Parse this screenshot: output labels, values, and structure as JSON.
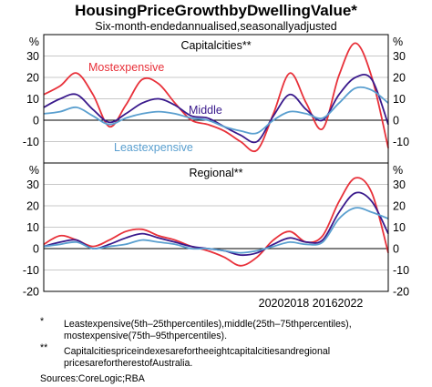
{
  "title": "HousingPriceGrowthbyDwellingValue*",
  "subtitle": "Six-month-endedannualised,seasonallyadjusted",
  "x_tick_text": "20202018 20162022",
  "notes": [
    {
      "marker": "*",
      "lines": [
        "Leastexpensive(5th–25thpercentiles),middle(25th–75thpercentiles),",
        "mostexpensive(75th–95thpercentiles)."
      ]
    },
    {
      "marker": "**",
      "lines": [
        "Capitalcitiespriceindexesarefortheeightcapitalcitiesandregional",
        "pricesarefortherestofAustralia."
      ]
    }
  ],
  "source": "Sources:CoreLogic;RBA",
  "colors": {
    "most_expensive": "#e8313a",
    "middle": "#3a1a8c",
    "least_expensive": "#5a9fcf",
    "grid": "#c8c8c8",
    "axis": "#000000"
  },
  "chart_data": [
    {
      "type": "line",
      "title": "Capitalcities**",
      "ylabel": "%",
      "ylim": [
        -20,
        40
      ],
      "yticks": [
        -10,
        0,
        10,
        20,
        30
      ],
      "grid": true,
      "x": [
        2012.0,
        2012.5,
        2013.0,
        2013.5,
        2014.0,
        2014.5,
        2015.0,
        2015.5,
        2016.0,
        2016.5,
        2017.0,
        2017.5,
        2018.0,
        2018.5,
        2019.0,
        2019.5,
        2020.0,
        2020.5,
        2021.0,
        2021.5,
        2022.0,
        2022.5
      ],
      "series": [
        {
          "name": "Mostexpensive",
          "key": "most",
          "label_text": "Mostexpensive",
          "values": [
            12,
            16,
            22,
            12,
            -3,
            7,
            19,
            17,
            8,
            0,
            -2,
            -5,
            -10,
            -14,
            3,
            22,
            8,
            -4,
            21,
            36,
            20,
            -13
          ]
        },
        {
          "name": "Middle",
          "key": "middle",
          "label_text": "Middle",
          "values": [
            6,
            10,
            12,
            5,
            -1,
            3,
            8,
            10,
            7,
            2,
            1,
            -3,
            -7,
            -10,
            2,
            12,
            5,
            0,
            12,
            20,
            19,
            -2
          ]
        },
        {
          "name": "Leastexpensive",
          "key": "least",
          "label_text": "Leastexpensive",
          "values": [
            3,
            4,
            6,
            2,
            -2,
            1,
            3,
            4,
            3,
            1,
            0,
            -3,
            -5,
            -6,
            0,
            4,
            3,
            1,
            8,
            15,
            14,
            8
          ]
        }
      ]
    },
    {
      "type": "line",
      "title": "Regional**",
      "ylabel": "%",
      "ylim": [
        -20,
        40
      ],
      "yticks": [
        -20,
        -10,
        0,
        10,
        20,
        30
      ],
      "grid": true,
      "x": [
        2012.0,
        2012.5,
        2013.0,
        2013.5,
        2014.0,
        2014.5,
        2015.0,
        2015.5,
        2016.0,
        2016.5,
        2017.0,
        2017.5,
        2018.0,
        2018.5,
        2019.0,
        2019.5,
        2020.0,
        2020.5,
        2021.0,
        2021.5,
        2022.0,
        2022.5
      ],
      "series": [
        {
          "name": "Mostexpensive",
          "key": "most",
          "values": [
            2,
            6,
            4,
            1,
            4,
            8,
            9,
            6,
            4,
            1,
            -1,
            -4,
            -8,
            -4,
            4,
            8,
            3,
            6,
            22,
            33,
            26,
            -2
          ]
        },
        {
          "name": "Middle",
          "key": "middle",
          "values": [
            1,
            3,
            4,
            0,
            2,
            5,
            7,
            5,
            3,
            1,
            0,
            -1,
            -3,
            -2,
            2,
            5,
            3,
            4,
            17,
            26,
            22,
            7
          ]
        },
        {
          "name": "Leastexpensive",
          "key": "least",
          "values": [
            1,
            2,
            3,
            0,
            1,
            2,
            4,
            3,
            2,
            0,
            0,
            -1,
            -2,
            -1,
            1,
            3,
            2,
            3,
            14,
            19,
            17,
            14
          ]
        }
      ]
    }
  ]
}
